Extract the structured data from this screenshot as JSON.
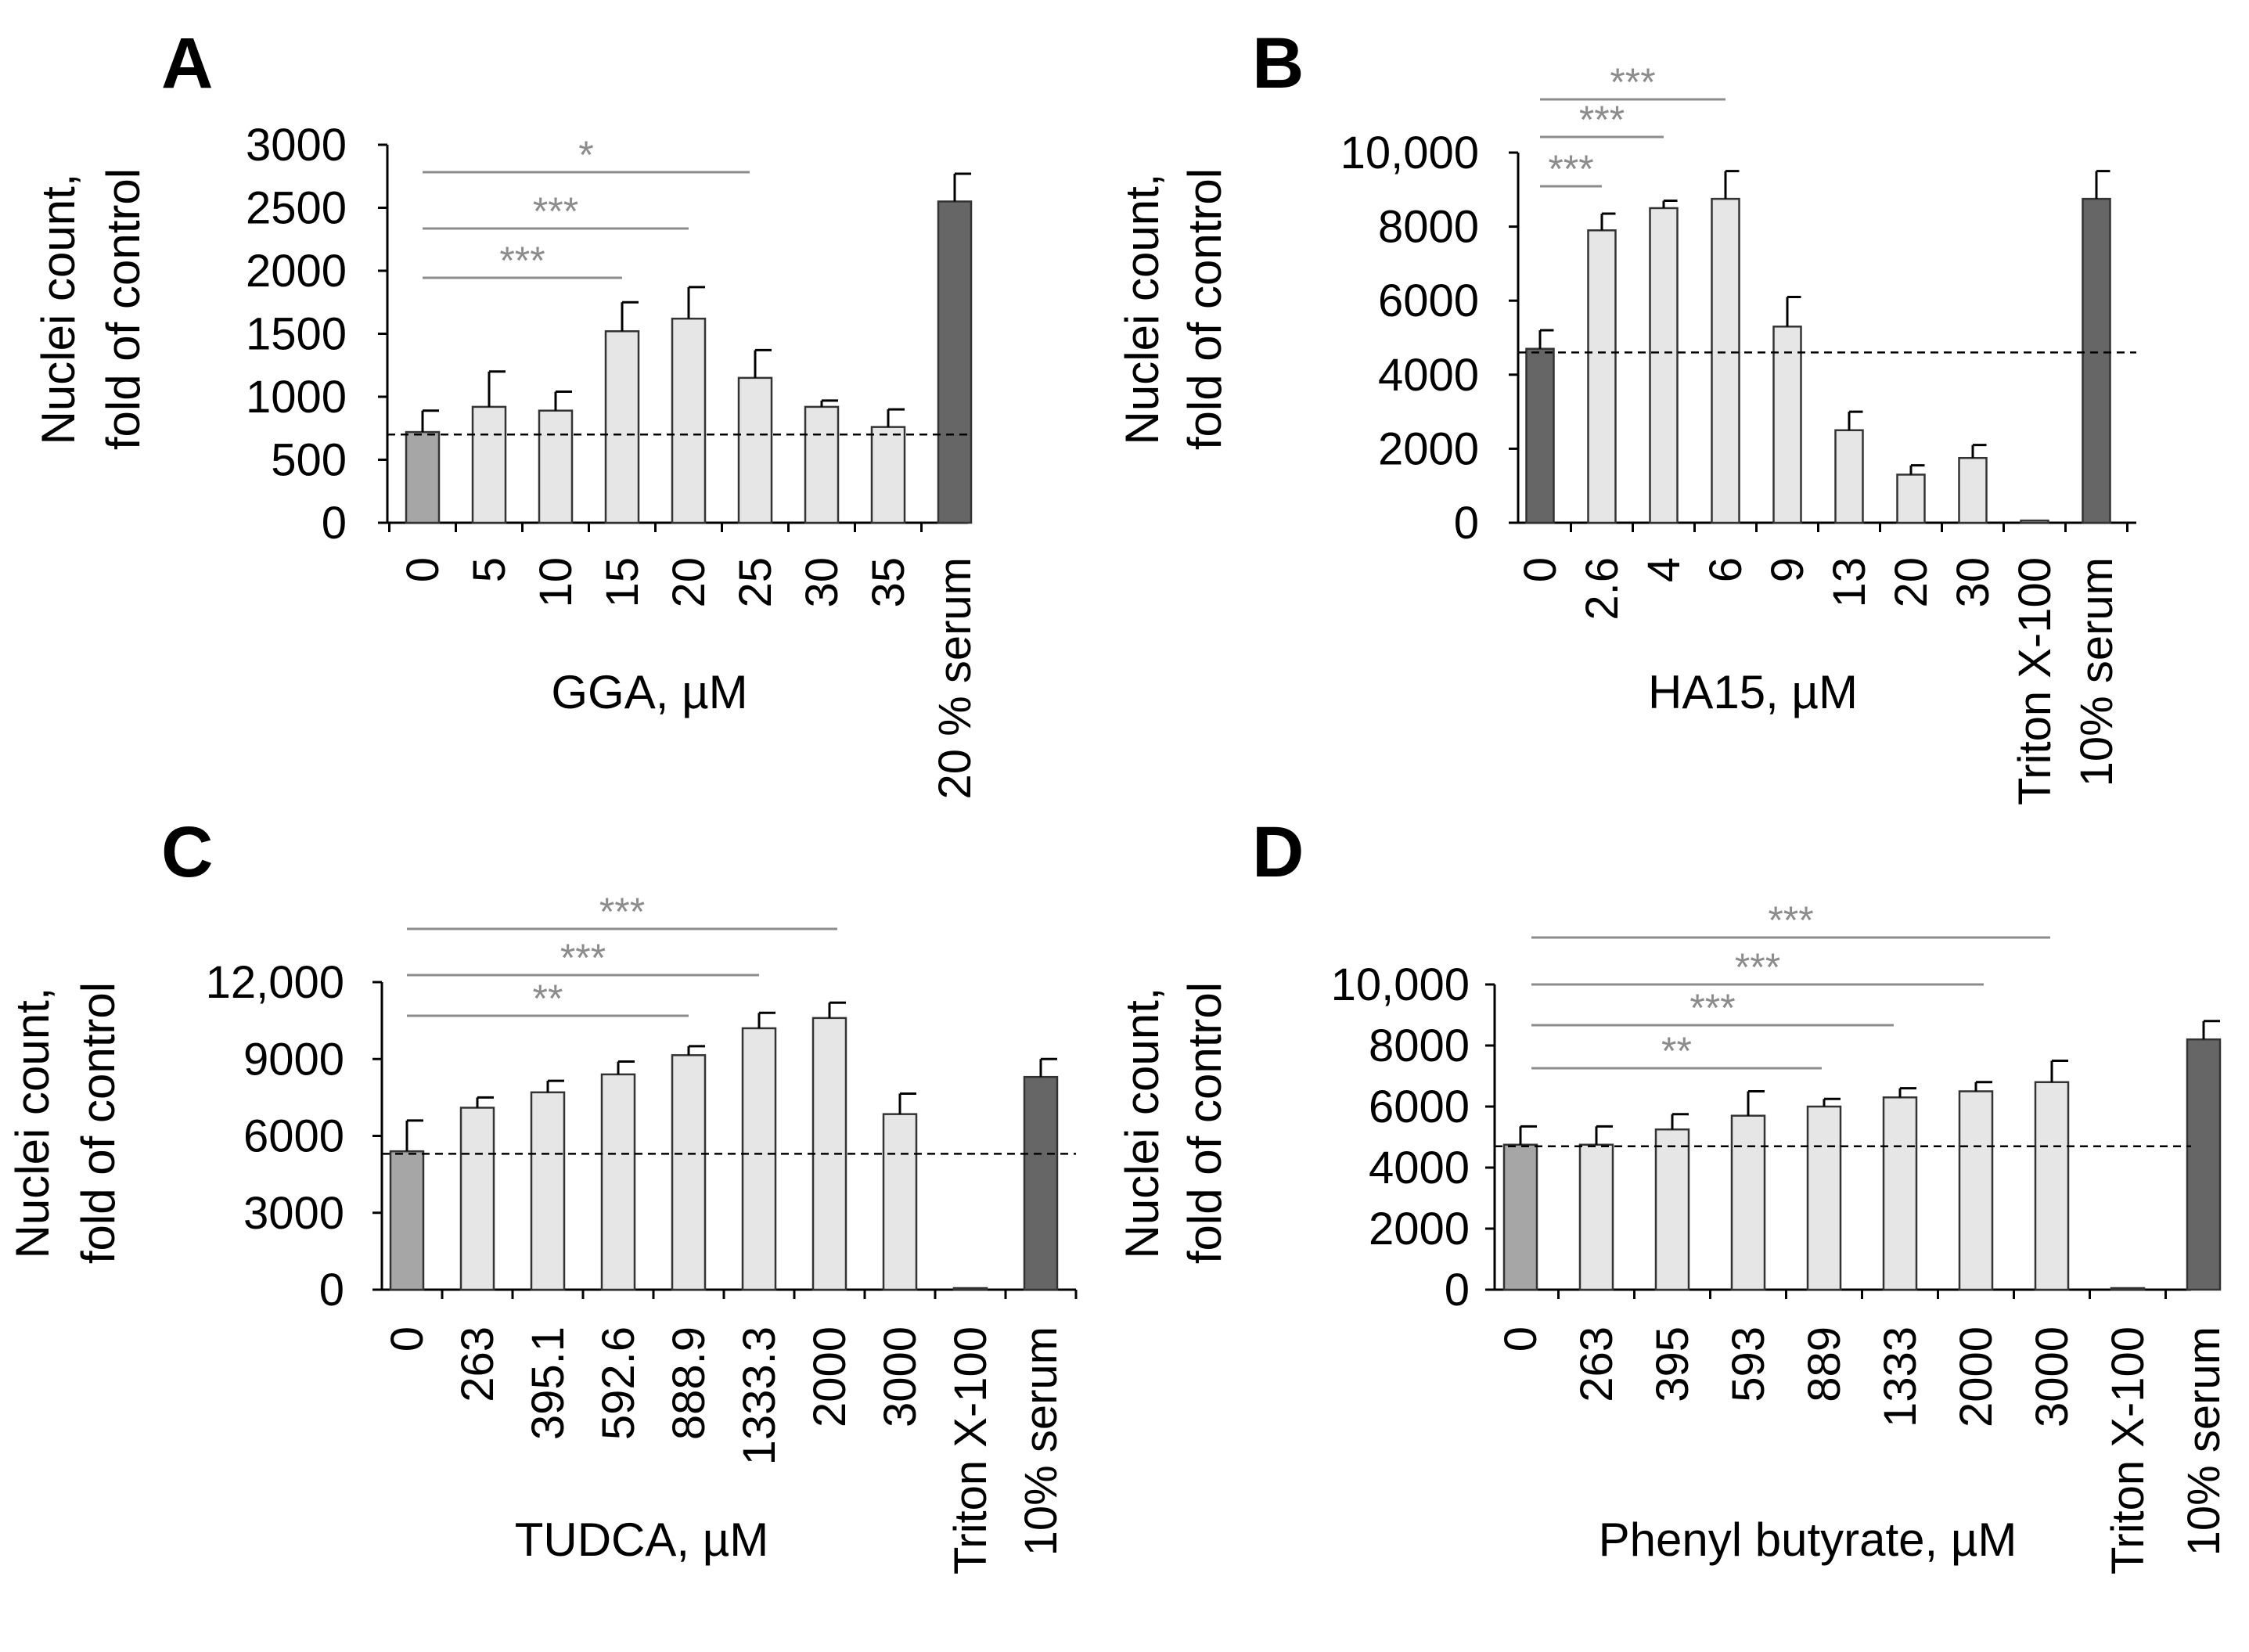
{
  "chart_data": [
    {
      "panel": "A",
      "type": "bar",
      "ylabel_lines": [
        "Nuclei count,",
        "fold of control"
      ],
      "xlabel": "GGA, µM",
      "ylim": [
        0,
        3000
      ],
      "yticks": [
        0,
        500,
        1000,
        1500,
        2000,
        2500,
        3000
      ],
      "ytick_labels": [
        "0",
        "500",
        "1000",
        "1500",
        "2000",
        "2500",
        "3000"
      ],
      "categories": [
        "0",
        "5",
        "10",
        "15",
        "20",
        "25",
        "30",
        "35",
        "20 % serum"
      ],
      "values": [
        720,
        920,
        890,
        1520,
        1620,
        1150,
        920,
        760,
        2550
      ],
      "errors": [
        170,
        280,
        150,
        230,
        250,
        220,
        50,
        140,
        220
      ],
      "bar_colors": [
        "#a6a6a6",
        "#e6e6e6",
        "#e6e6e6",
        "#e6e6e6",
        "#e6e6e6",
        "#e6e6e6",
        "#e6e6e6",
        "#e6e6e6",
        "#666666"
      ],
      "reference_line": 700,
      "significance": [
        {
          "from": "0",
          "to": "15",
          "label": "***"
        },
        {
          "from": "0",
          "to": "20",
          "label": "***"
        },
        {
          "from": "0",
          "to": "25",
          "label": "*"
        }
      ]
    },
    {
      "panel": "B",
      "type": "bar",
      "ylabel_lines": [
        "Nuclei count,",
        "fold of control"
      ],
      "xlabel": "HA15, µM",
      "ylim": [
        0,
        10000
      ],
      "yticks": [
        0,
        2000,
        4000,
        6000,
        8000,
        10000
      ],
      "ytick_labels": [
        "0",
        "2000",
        "4000",
        "6000",
        "8000",
        "10,000"
      ],
      "categories": [
        "0",
        "2.6",
        "4",
        "6",
        "9",
        "13",
        "20",
        "30",
        "Triton X-100",
        "10% serum"
      ],
      "values": [
        4700,
        7900,
        8500,
        8750,
        5300,
        2500,
        1300,
        1750,
        60,
        8750
      ],
      "errors": [
        500,
        450,
        200,
        750,
        800,
        500,
        250,
        350,
        0,
        750
      ],
      "bar_colors": [
        "#666666",
        "#e6e6e6",
        "#e6e6e6",
        "#e6e6e6",
        "#e6e6e6",
        "#e6e6e6",
        "#e6e6e6",
        "#e6e6e6",
        "#e6e6e6",
        "#666666"
      ],
      "reference_line": 4600,
      "significance": [
        {
          "from": "0",
          "to": "2.6",
          "label": "***"
        },
        {
          "from": "0",
          "to": "4",
          "label": "***"
        },
        {
          "from": "0",
          "to": "6",
          "label": "***"
        }
      ]
    },
    {
      "panel": "C",
      "type": "bar",
      "ylabel_lines": [
        "Nuclei count,",
        "fold of control"
      ],
      "xlabel": "TUDCA, µM",
      "ylim": [
        0,
        12000
      ],
      "yticks": [
        0,
        3000,
        6000,
        9000,
        12000
      ],
      "ytick_labels": [
        "0",
        "3000",
        "6000",
        "9000",
        "12,000"
      ],
      "categories": [
        "0",
        "263",
        "395.1",
        "592.6",
        "888.9",
        "1333.3",
        "2000",
        "3000",
        "Triton X-100",
        "10% serum"
      ],
      "values": [
        5400,
        7100,
        7700,
        8400,
        9150,
        10200,
        10600,
        6850,
        50,
        8300
      ],
      "errors": [
        1200,
        400,
        450,
        500,
        350,
        600,
        600,
        800,
        0,
        700
      ],
      "bar_colors": [
        "#a6a6a6",
        "#e6e6e6",
        "#e6e6e6",
        "#e6e6e6",
        "#e6e6e6",
        "#e6e6e6",
        "#e6e6e6",
        "#e6e6e6",
        "#e6e6e6",
        "#666666"
      ],
      "reference_line": 5300,
      "significance": [
        {
          "from": "0",
          "to": "888.9",
          "label": "**"
        },
        {
          "from": "0",
          "to": "1333.3",
          "label": "***"
        },
        {
          "from": "0",
          "to": "2000",
          "label": "***"
        }
      ]
    },
    {
      "panel": "D",
      "type": "bar",
      "ylabel_lines": [
        "Nuclei count,",
        "fold of control"
      ],
      "xlabel": "Phenyl butyrate, µM",
      "ylim": [
        0,
        10000
      ],
      "yticks": [
        0,
        2000,
        4000,
        6000,
        8000,
        10000
      ],
      "ytick_labels": [
        "0",
        "2000",
        "4000",
        "6000",
        "8000",
        "10,000"
      ],
      "categories": [
        "0",
        "263",
        "395",
        "593",
        "889",
        "1333",
        "2000",
        "3000",
        "Triton X-100",
        "10% serum"
      ],
      "values": [
        4750,
        4750,
        5250,
        5700,
        6000,
        6300,
        6500,
        6800,
        50,
        8200
      ],
      "errors": [
        600,
        600,
        500,
        800,
        250,
        300,
        300,
        700,
        0,
        600
      ],
      "bar_colors": [
        "#a6a6a6",
        "#e6e6e6",
        "#e6e6e6",
        "#e6e6e6",
        "#e6e6e6",
        "#e6e6e6",
        "#e6e6e6",
        "#e6e6e6",
        "#e6e6e6",
        "#666666"
      ],
      "reference_line": 4700,
      "significance": [
        {
          "from": "0",
          "to": "889",
          "label": "**"
        },
        {
          "from": "0",
          "to": "1333",
          "label": "***"
        },
        {
          "from": "0",
          "to": "2000",
          "label": "***"
        },
        {
          "from": "0",
          "to": "3000",
          "label": "***"
        }
      ]
    }
  ],
  "colors": {
    "axis": "#000000",
    "bar_outline": "#333333",
    "sig_line": "#8c8c8c",
    "sig_text": "#8c8c8c",
    "reference": "#000000"
  }
}
